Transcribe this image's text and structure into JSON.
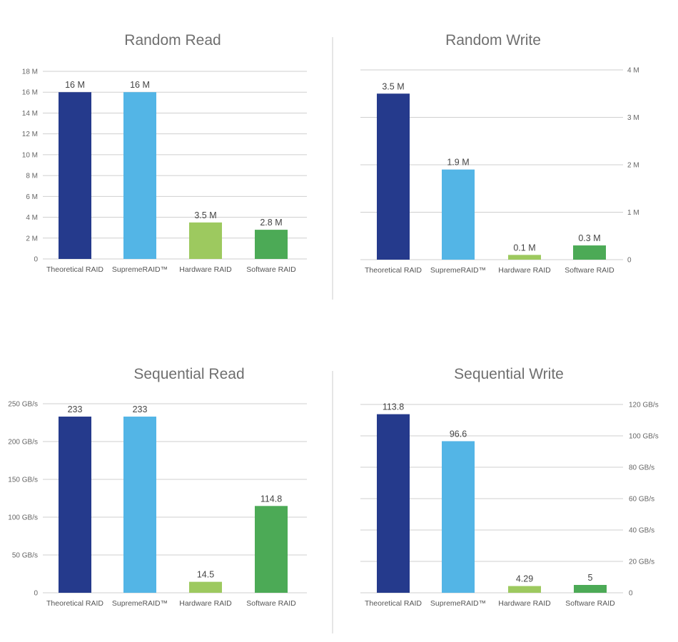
{
  "colors": {
    "theoretical": "#253a8c",
    "supremeraid": "#53b5e6",
    "hardware": "#9dc95f",
    "software": "#4caa56",
    "divider": "#cccccc"
  },
  "chart_data": [
    {
      "type": "bar",
      "title": "Random Read",
      "categories": [
        "Theoretical RAID",
        "SupremeRAID™",
        "Hardware RAID",
        "Software RAID"
      ],
      "values": [
        16,
        16,
        3.5,
        2.8
      ],
      "value_labels": [
        "16 M",
        "16 M",
        "3.5 M",
        "2.8 M"
      ],
      "ylim": [
        0,
        18
      ],
      "yticks": [
        0,
        2,
        4,
        6,
        8,
        10,
        12,
        14,
        16,
        18
      ],
      "ytick_labels": [
        "0",
        "2 M",
        "4 M",
        "6 M",
        "8 M",
        "10 M",
        "12 M",
        "14 M",
        "16 M",
        "18 M"
      ],
      "axis_side": "left",
      "xlabel": "",
      "ylabel": ""
    },
    {
      "type": "bar",
      "title": "Random Write",
      "categories": [
        "Theoretical RAID",
        "SupremeRAID™",
        "Hardware RAID",
        "Software RAID"
      ],
      "values": [
        3.5,
        1.9,
        0.1,
        0.3
      ],
      "value_labels": [
        "3.5 M",
        "1.9 M",
        "0.1 M",
        "0.3 M"
      ],
      "ylim": [
        0,
        4
      ],
      "yticks": [
        0,
        1,
        2,
        3,
        4
      ],
      "ytick_labels": [
        "0",
        "1 M",
        "2 M",
        "3 M",
        "4 M"
      ],
      "axis_side": "right",
      "xlabel": "",
      "ylabel": ""
    },
    {
      "type": "bar",
      "title": "Sequential Read",
      "categories": [
        "Theoretical RAID",
        "SupremeRAID™",
        "Hardware RAID",
        "Software RAID"
      ],
      "values": [
        233,
        233,
        14.5,
        114.8
      ],
      "value_labels": [
        "233",
        "233",
        "14.5",
        "114.8"
      ],
      "ylim": [
        0,
        250
      ],
      "yticks": [
        0,
        50,
        100,
        150,
        200,
        250
      ],
      "ytick_labels": [
        "0",
        "50 GB/s",
        "100 GB/s",
        "150 GB/s",
        "200 GB/s",
        "250 GB/s"
      ],
      "axis_side": "left",
      "xlabel": "",
      "ylabel": ""
    },
    {
      "type": "bar",
      "title": "Sequential Write",
      "categories": [
        "Theoretical RAID",
        "SupremeRAID™",
        "Hardware RAID",
        "Software RAID"
      ],
      "values": [
        113.8,
        96.6,
        4.29,
        5
      ],
      "value_labels": [
        "113.8",
        "96.6",
        "4.29",
        "5"
      ],
      "ylim": [
        0,
        120
      ],
      "yticks": [
        0,
        20,
        40,
        60,
        80,
        100,
        120
      ],
      "ytick_labels": [
        "0",
        "20 GB/s",
        "40 GB/s",
        "60 GB/s",
        "80 GB/s",
        "100 GB/s",
        "120 GB/s"
      ],
      "axis_side": "right",
      "xlabel": "",
      "ylabel": ""
    }
  ]
}
